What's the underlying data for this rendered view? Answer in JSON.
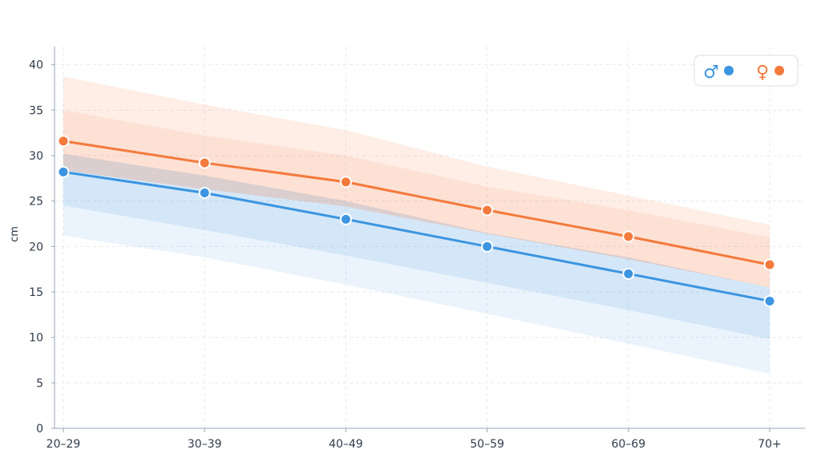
{
  "chart_data": {
    "type": "line",
    "categories": [
      "20–29",
      "30–39",
      "40–49",
      "50–59",
      "60–69",
      "70+"
    ],
    "ylabel": "cm",
    "ylim": [
      0,
      42
    ],
    "yticks": [
      0,
      5,
      10,
      15,
      20,
      25,
      30,
      35,
      40
    ],
    "grid": true,
    "legend_position": "top-right",
    "series": [
      {
        "name": "♂",
        "color": "#3b95e0",
        "values": [
          28.2,
          25.9,
          23.0,
          20.0,
          17.0,
          14.0
        ],
        "band_inner": {
          "low": [
            24.5,
            21.8,
            19.0,
            16.0,
            13.0,
            9.8
          ],
          "high": [
            30.2,
            27.8,
            25.0,
            21.5,
            18.8,
            15.5
          ]
        },
        "band_outer": {
          "low": [
            21.2,
            18.8,
            15.8,
            12.6,
            9.3,
            6.0
          ],
          "high": [
            30.2,
            27.8,
            25.0,
            21.5,
            18.8,
            15.5
          ]
        }
      },
      {
        "name": "♀",
        "color": "#f47a3c",
        "values": [
          31.6,
          29.2,
          27.1,
          24.0,
          21.1,
          18.0
        ],
        "band_inner": {
          "low": [
            28.4,
            26.3,
            24.4,
            21.4,
            18.6,
            15.5
          ],
          "high": [
            35.0,
            32.2,
            30.0,
            26.6,
            24.0,
            21.0
          ]
        },
        "band_outer": {
          "low": [
            28.4,
            26.3,
            24.4,
            21.4,
            18.6,
            15.5
          ],
          "high": [
            38.7,
            35.6,
            32.8,
            28.8,
            25.6,
            22.4
          ]
        }
      }
    ]
  }
}
